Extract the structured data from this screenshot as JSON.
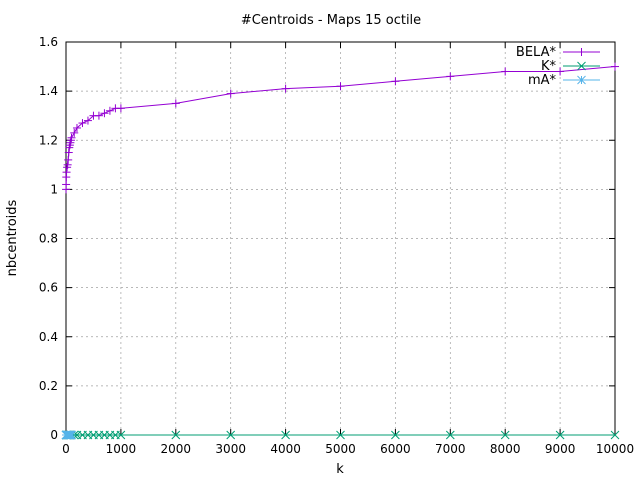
{
  "chart_data": {
    "type": "line",
    "title": "#Centroids - Maps 15 octile",
    "xlabel": "k",
    "ylabel": "nbcentroids",
    "xlim": [
      0,
      10000
    ],
    "ylim": [
      0,
      1.6
    ],
    "grid": true,
    "legend_position": "top-right",
    "x_ticks": [
      "0",
      "1000",
      "2000",
      "3000",
      "4000",
      "5000",
      "6000",
      "7000",
      "8000",
      "9000",
      "10000"
    ],
    "y_ticks": [
      "0",
      "0.2",
      "0.4",
      "0.6",
      "0.8",
      "1",
      "1.2",
      "1.4",
      "1.6"
    ],
    "series": [
      {
        "name": "BELA*",
        "color": "#9400d3",
        "marker": "plus",
        "x": [
          1,
          2,
          5,
          10,
          20,
          30,
          40,
          50,
          60,
          70,
          80,
          90,
          100,
          150,
          200,
          300,
          400,
          500,
          600,
          700,
          800,
          900,
          1000,
          2000,
          3000,
          4000,
          5000,
          6000,
          7000,
          8000,
          9000,
          10000
        ],
        "y": [
          1.0,
          1.02,
          1.05,
          1.07,
          1.09,
          1.1,
          1.12,
          1.15,
          1.17,
          1.18,
          1.19,
          1.2,
          1.21,
          1.23,
          1.25,
          1.27,
          1.28,
          1.3,
          1.3,
          1.31,
          1.32,
          1.33,
          1.33,
          1.35,
          1.39,
          1.41,
          1.42,
          1.44,
          1.46,
          1.48,
          1.48,
          1.5
        ]
      },
      {
        "name": "K*",
        "color": "#009e73",
        "marker": "x",
        "x": [
          1,
          2,
          5,
          10,
          20,
          30,
          40,
          50,
          60,
          70,
          80,
          90,
          100,
          150,
          200,
          300,
          400,
          500,
          600,
          700,
          800,
          900,
          1000,
          2000,
          3000,
          4000,
          5000,
          6000,
          7000,
          8000,
          9000,
          10000
        ],
        "y": [
          0,
          0,
          0,
          0,
          0,
          0,
          0,
          0,
          0,
          0,
          0,
          0,
          0,
          0,
          0,
          0,
          0,
          0,
          0,
          0,
          0,
          0,
          0,
          0,
          0,
          0,
          0,
          0,
          0,
          0,
          0,
          0
        ]
      },
      {
        "name": "mA*",
        "color": "#56b4e9",
        "marker": "star",
        "x": [
          1,
          2,
          5,
          10,
          20,
          30,
          40,
          50,
          60,
          70,
          80,
          90,
          100
        ],
        "y": [
          0,
          0,
          0,
          0,
          0,
          0,
          0,
          0,
          0,
          0,
          0,
          0,
          0
        ]
      }
    ]
  }
}
